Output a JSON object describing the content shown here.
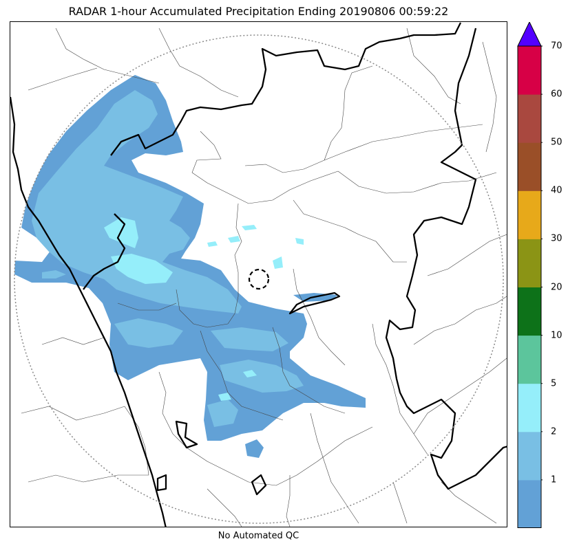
{
  "title": "RADAR 1-hour Accumulated Precipitation Ending 20190806 00:59:22",
  "caption": "No Automated QC",
  "colorbar": {
    "bands": [
      {
        "lower": null,
        "upper": 1,
        "color": "#62a1d6"
      },
      {
        "lower": 1,
        "upper": 2,
        "color": "#79bfe4"
      },
      {
        "lower": 2,
        "upper": 5,
        "color": "#95eefa"
      },
      {
        "lower": 5,
        "upper": 10,
        "color": "#5cc59c"
      },
      {
        "lower": 10,
        "upper": 20,
        "color": "#0d7219"
      },
      {
        "lower": 20,
        "upper": 30,
        "color": "#8b9415"
      },
      {
        "lower": 30,
        "upper": 40,
        "color": "#e7a91a"
      },
      {
        "lower": 40,
        "upper": 50,
        "color": "#9a4f28"
      },
      {
        "lower": 50,
        "upper": 60,
        "color": "#a9483f"
      },
      {
        "lower": 60,
        "upper": 70,
        "color": "#d70046"
      }
    ],
    "extend_color": "#5300ff",
    "tick_labels": [
      "1",
      "2",
      "5",
      "10",
      "20",
      "30",
      "40",
      "50",
      "60",
      "70"
    ]
  },
  "colors": {
    "precip_light": "#62a1d6",
    "precip_medium": "#79bfe4",
    "precip_heavy": "#95eefa",
    "range_ring": "#888888",
    "borders": "#000000"
  }
}
